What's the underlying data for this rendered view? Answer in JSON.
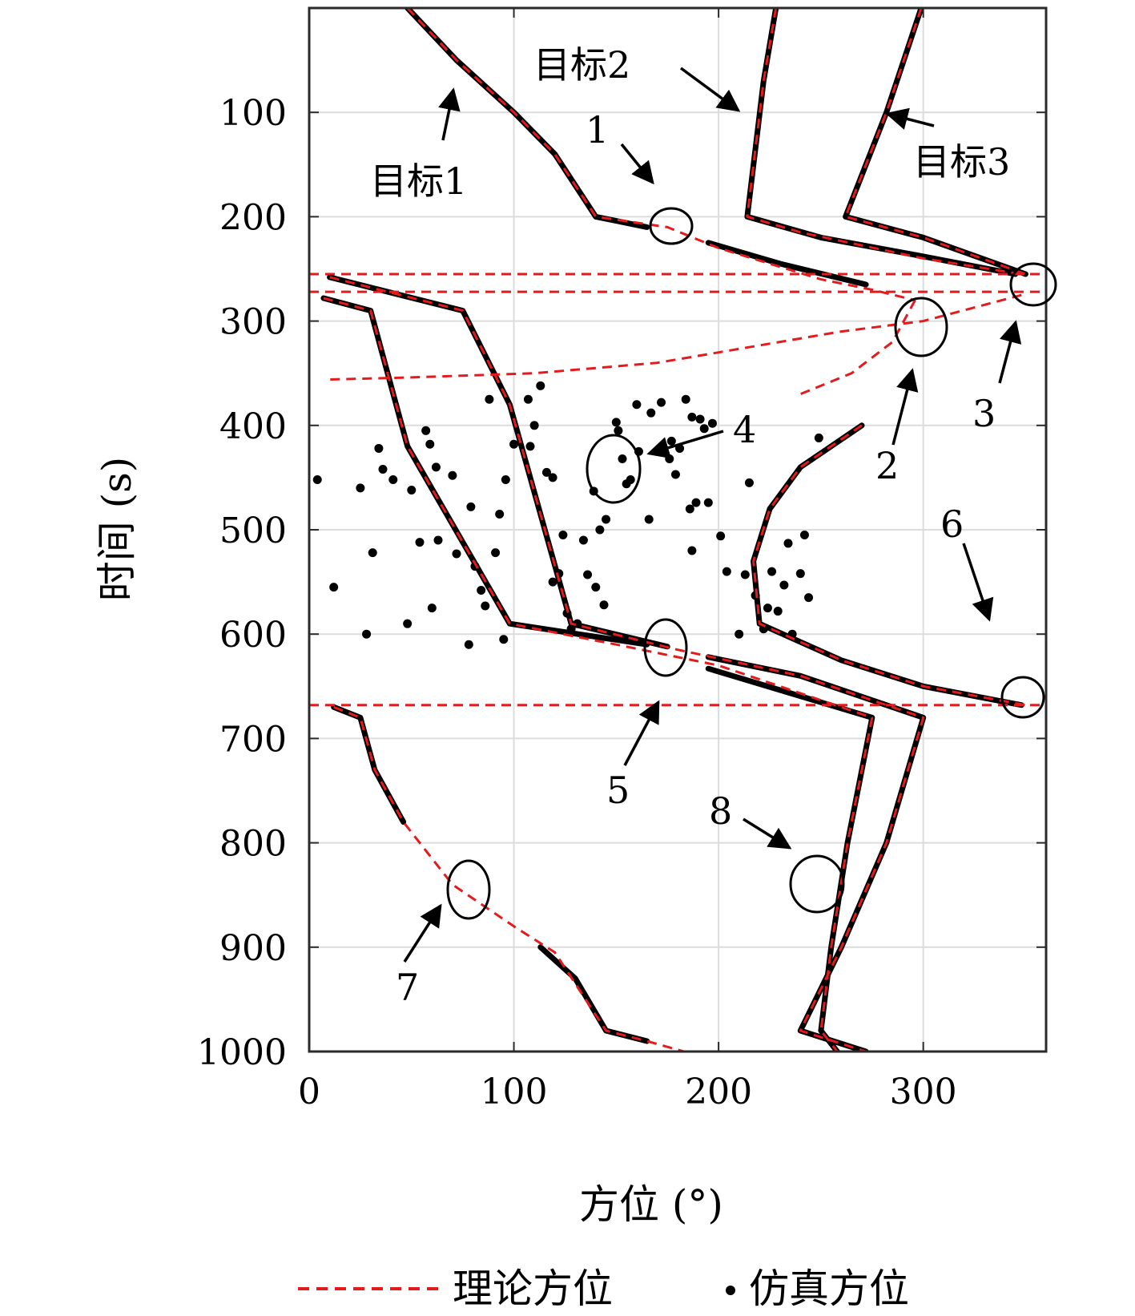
{
  "chart_data": {
    "type": "line",
    "xlabel": "方位 (°)",
    "ylabel": "时间 (s)",
    "xlim": [
      0,
      360
    ],
    "ylim": [
      1000,
      0
    ],
    "y_reversed": true,
    "grid": true,
    "xticks": [
      0,
      100,
      200,
      300
    ],
    "yticks": [
      100,
      200,
      300,
      400,
      500,
      600,
      700,
      800,
      900,
      1000
    ],
    "legend": {
      "placement": "bottom",
      "entries": [
        {
          "label": "理论方位",
          "style": "red-dashed"
        },
        {
          "label": "仿真方位",
          "style": "black-dot"
        }
      ]
    },
    "colors": {
      "theory": "#e41a1c",
      "simulation": "#000000"
    },
    "theory_series": [
      {
        "id": "t1a",
        "points": [
          [
            48,
            0
          ],
          [
            72,
            50
          ],
          [
            100,
            100
          ],
          [
            120,
            140
          ],
          [
            140,
            200
          ],
          [
            175,
            210
          ],
          [
            200,
            230
          ],
          [
            250,
            260
          ],
          [
            275,
            270
          ],
          [
            296,
            280
          ]
        ]
      },
      {
        "id": "t1b",
        "points": [
          [
            296,
            280
          ],
          [
            285,
            320
          ],
          [
            265,
            350
          ],
          [
            240,
            370
          ]
        ]
      },
      {
        "id": "t1c",
        "points": [
          [
            270,
            400
          ],
          [
            240,
            440
          ],
          [
            225,
            480
          ],
          [
            217,
            530
          ],
          [
            220,
            590
          ],
          [
            260,
            625
          ],
          [
            300,
            650
          ],
          [
            350,
            668
          ]
        ]
      },
      {
        "id": "t2a",
        "points": [
          [
            228,
            0
          ],
          [
            222,
            70
          ],
          [
            214,
            200
          ],
          [
            240,
            215
          ],
          [
            300,
            240
          ],
          [
            348,
            255
          ]
        ]
      },
      {
        "id": "t2b",
        "points": [
          [
            348,
            275
          ],
          [
            300,
            300
          ],
          [
            260,
            310
          ],
          [
            230,
            320
          ],
          [
            200,
            330
          ],
          [
            170,
            340
          ],
          [
            140,
            345
          ],
          [
            110,
            350
          ],
          [
            80,
            352
          ],
          [
            50,
            354
          ],
          [
            10,
            356
          ]
        ]
      },
      {
        "id": "t3a",
        "points": [
          [
            299,
            0
          ],
          [
            282,
            100
          ],
          [
            262,
            200
          ],
          [
            300,
            220
          ],
          [
            350,
            255
          ]
        ]
      },
      {
        "id": "t3b",
        "points": [
          [
            0,
            255
          ],
          [
            360,
            255
          ]
        ]
      },
      {
        "id": "t3c",
        "points": [
          [
            0,
            272
          ],
          [
            360,
            272
          ]
        ]
      },
      {
        "id": "t4a",
        "points": [
          [
            10,
            258
          ],
          [
            75,
            290
          ],
          [
            98,
            380
          ],
          [
            128,
            590
          ],
          [
            180,
            615
          ],
          [
            240,
            640
          ],
          [
            300,
            680
          ],
          [
            282,
            800
          ],
          [
            260,
            900
          ],
          [
            240,
            980
          ],
          [
            272,
            1000
          ]
        ]
      },
      {
        "id": "t4b",
        "points": [
          [
            7,
            278
          ],
          [
            30,
            290
          ],
          [
            48,
            420
          ],
          [
            98,
            590
          ],
          [
            150,
            610
          ],
          [
            200,
            630
          ],
          [
            275,
            680
          ],
          [
            263,
            800
          ],
          [
            255,
            900
          ],
          [
            250,
            980
          ],
          [
            258,
            1000
          ]
        ]
      },
      {
        "id": "t5",
        "points": [
          [
            0,
            668
          ],
          [
            360,
            668
          ]
        ]
      },
      {
        "id": "t6",
        "points": [
          [
            12,
            670
          ],
          [
            25,
            680
          ],
          [
            32,
            730
          ],
          [
            46,
            780
          ],
          [
            70,
            840
          ],
          [
            100,
            880
          ],
          [
            120,
            905
          ],
          [
            145,
            980
          ],
          [
            165,
            990
          ],
          [
            183,
            1000
          ]
        ]
      }
    ],
    "simulation_series": [
      {
        "id": "s1a",
        "points": [
          [
            48,
            0
          ],
          [
            72,
            50
          ],
          [
            100,
            100
          ],
          [
            120,
            140
          ],
          [
            140,
            200
          ],
          [
            165,
            210
          ]
        ]
      },
      {
        "id": "s1b",
        "points": [
          [
            195,
            225
          ],
          [
            230,
            245
          ],
          [
            272,
            265
          ]
        ]
      },
      {
        "id": "s2",
        "points": [
          [
            228,
            0
          ],
          [
            222,
            70
          ],
          [
            214,
            200
          ],
          [
            250,
            220
          ],
          [
            300,
            238
          ],
          [
            345,
            255
          ]
        ]
      },
      {
        "id": "s3",
        "points": [
          [
            299,
            0
          ],
          [
            282,
            100
          ],
          [
            262,
            200
          ],
          [
            300,
            220
          ],
          [
            350,
            255
          ]
        ]
      },
      {
        "id": "s4",
        "points": [
          [
            10,
            258
          ],
          [
            75,
            290
          ],
          [
            98,
            380
          ],
          [
            128,
            590
          ],
          [
            175,
            612
          ]
        ]
      },
      {
        "id": "s5",
        "points": [
          [
            195,
            622
          ],
          [
            240,
            640
          ],
          [
            300,
            680
          ],
          [
            282,
            800
          ],
          [
            260,
            900
          ],
          [
            240,
            980
          ],
          [
            272,
            1000
          ]
        ]
      },
      {
        "id": "s6",
        "points": [
          [
            7,
            278
          ],
          [
            30,
            290
          ],
          [
            48,
            420
          ],
          [
            98,
            590
          ],
          [
            165,
            610
          ]
        ]
      },
      {
        "id": "s7",
        "points": [
          [
            195,
            633
          ],
          [
            275,
            680
          ],
          [
            263,
            800
          ],
          [
            255,
            900
          ],
          [
            250,
            980
          ],
          [
            258,
            1000
          ]
        ]
      },
      {
        "id": "s8",
        "points": [
          [
            270,
            400
          ],
          [
            240,
            440
          ],
          [
            225,
            480
          ],
          [
            217,
            530
          ],
          [
            220,
            590
          ],
          [
            260,
            625
          ],
          [
            300,
            650
          ],
          [
            348,
            668
          ]
        ]
      },
      {
        "id": "s9",
        "points": [
          [
            12,
            670
          ],
          [
            25,
            680
          ],
          [
            32,
            730
          ],
          [
            46,
            780
          ]
        ]
      },
      {
        "id": "s10",
        "points": [
          [
            113,
            900
          ],
          [
            130,
            930
          ],
          [
            145,
            980
          ],
          [
            165,
            990
          ]
        ]
      }
    ],
    "scatter_points": [
      [
        4,
        452
      ],
      [
        12,
        555
      ],
      [
        25,
        460
      ],
      [
        31,
        522
      ],
      [
        34,
        422
      ],
      [
        36,
        442
      ],
      [
        41,
        452
      ],
      [
        50,
        462
      ],
      [
        54,
        512
      ],
      [
        48,
        590
      ],
      [
        57,
        405
      ],
      [
        59,
        418
      ],
      [
        63,
        510
      ],
      [
        70,
        448
      ],
      [
        72,
        523
      ],
      [
        79,
        478
      ],
      [
        81,
        535
      ],
      [
        84,
        558
      ],
      [
        86,
        573
      ],
      [
        91,
        522
      ],
      [
        93,
        485
      ],
      [
        95,
        605
      ],
      [
        96,
        452
      ],
      [
        100,
        418
      ],
      [
        107,
        375
      ],
      [
        110,
        400
      ],
      [
        113,
        362
      ],
      [
        116,
        445
      ],
      [
        119,
        450
      ],
      [
        119,
        550
      ],
      [
        122,
        542
      ],
      [
        126,
        580
      ],
      [
        128,
        595
      ],
      [
        131,
        590
      ],
      [
        134,
        510
      ],
      [
        136,
        543
      ],
      [
        139,
        463
      ],
      [
        140,
        555
      ],
      [
        144,
        572
      ],
      [
        145,
        490
      ],
      [
        150,
        397
      ],
      [
        151,
        405
      ],
      [
        153,
        432
      ],
      [
        155,
        456
      ],
      [
        157,
        452
      ],
      [
        160,
        380
      ],
      [
        161,
        425
      ],
      [
        166,
        490
      ],
      [
        167,
        388
      ],
      [
        172,
        378
      ],
      [
        176,
        432
      ],
      [
        177,
        415
      ],
      [
        179,
        447
      ],
      [
        181,
        422
      ],
      [
        184,
        375
      ],
      [
        186,
        480
      ],
      [
        187,
        392
      ],
      [
        187,
        520
      ],
      [
        189,
        474
      ],
      [
        191,
        394
      ],
      [
        193,
        403
      ],
      [
        195,
        474
      ],
      [
        197,
        398
      ],
      [
        201,
        506
      ],
      [
        204,
        540
      ],
      [
        210,
        600
      ],
      [
        213,
        543
      ],
      [
        215,
        455
      ],
      [
        218,
        563
      ],
      [
        222,
        595
      ],
      [
        224,
        575
      ],
      [
        226,
        540
      ],
      [
        229,
        578
      ],
      [
        232,
        553
      ],
      [
        234,
        513
      ],
      [
        236,
        600
      ],
      [
        240,
        542
      ],
      [
        242,
        505
      ],
      [
        244,
        565
      ],
      [
        249,
        412
      ],
      [
        108,
        420
      ],
      [
        62,
        440
      ],
      [
        142,
        500
      ],
      [
        124,
        505
      ],
      [
        78,
        610
      ],
      [
        28,
        600
      ],
      [
        60,
        575
      ],
      [
        88,
        375
      ]
    ],
    "annotations": {
      "target1": "目标1",
      "target2": "目标2",
      "target3": "目标3",
      "markers": [
        "1",
        "2",
        "3",
        "4",
        "5",
        "6",
        "7",
        "8"
      ]
    }
  }
}
